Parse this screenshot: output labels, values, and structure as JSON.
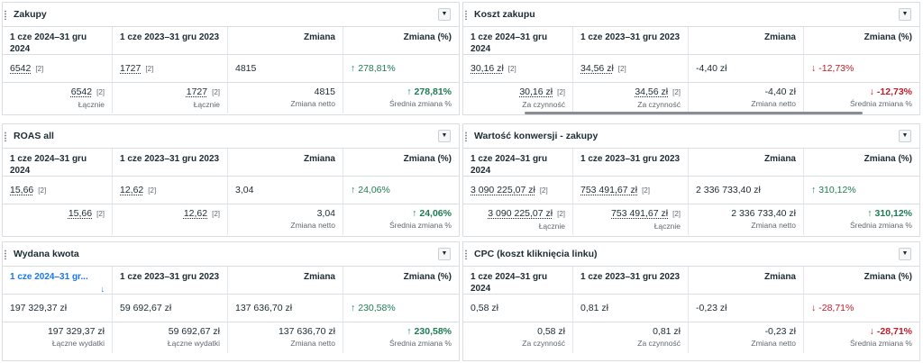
{
  "panels": [
    {
      "title": "Zakupy",
      "headers": [
        "1 cze 2024–31 gru 2024",
        "1 cze 2023–31 gru 2023",
        "Zmiana",
        "Zmiana (%)"
      ],
      "data": {
        "current": "6542",
        "current_badge": "[2]",
        "previous": "1727",
        "previous_badge": "[2]",
        "change": "4815",
        "pct": "278,81%"
      },
      "totals": {
        "current": "6542",
        "current_badge": "[2]",
        "current_sub": "Łącznie",
        "previous": "1727",
        "previous_badge": "[2]",
        "previous_sub": "Łącznie",
        "change": "4815",
        "change_sub": "Zmiana netto",
        "pct": "278,81%",
        "pct_sub": "Średnia zmiana %"
      }
    },
    {
      "title": "Koszt zakupu",
      "headers": [
        "1 cze 2024–31 gru 2024",
        "1 cze 2023–31 gru 2023",
        "Zmiana",
        "Zmiana (%)"
      ],
      "data": {
        "current": "30,16 zł",
        "current_badge": "[2]",
        "previous": "34,56 zł",
        "previous_badge": "[2]",
        "change": "-4,40 zł",
        "pct": "-12,73%"
      },
      "totals": {
        "current": "30,16 zł",
        "current_badge": "[2]",
        "current_sub": "Za czynność",
        "previous": "34,56 zł",
        "previous_badge": "[2]",
        "previous_sub": "Za czynność",
        "change": "-4,40 zł",
        "change_sub": "Zmiana netto",
        "pct": "-12,73%",
        "pct_sub": "Średnia zmiana %"
      }
    },
    {
      "title": "ROAS all",
      "headers": [
        "1 cze 2024–31 gru 2024",
        "1 cze 2023–31 gru 2023",
        "Zmiana",
        "Zmiana (%)"
      ],
      "data": {
        "current": "15,66",
        "current_badge": "[2]",
        "previous": "12,62",
        "previous_badge": "[2]",
        "change": "3,04",
        "pct": "24,06%"
      },
      "totals": {
        "current": "15,66",
        "current_badge": "[2]",
        "current_sub": "",
        "previous": "12,62",
        "previous_badge": "[2]",
        "previous_sub": "",
        "change": "3,04",
        "change_sub": "Zmiana netto",
        "pct": "24,06%",
        "pct_sub": "Średnia zmiana %"
      }
    },
    {
      "title": "Wartość konwersji - zakupy",
      "headers": [
        "1 cze 2024–31 gru 2024",
        "1 cze 2023–31 gru 2023",
        "Zmiana",
        "Zmiana (%)"
      ],
      "data": {
        "current": "3 090 225,07 zł",
        "current_badge": "[2]",
        "previous": "753 491,67 zł",
        "previous_badge": "[2]",
        "change": "2 336 733,40 zł",
        "pct": "310,12%"
      },
      "totals": {
        "current": "3 090 225,07 zł",
        "current_badge": "[2]",
        "current_sub": "Łącznie",
        "previous": "753 491,67 zł",
        "previous_badge": "[2]",
        "previous_sub": "Łącznie",
        "change": "2 336 733,40 zł",
        "change_sub": "Zmiana netto",
        "pct": "310,12%",
        "pct_sub": "Średnia zmiana %"
      }
    },
    {
      "title": "Wydana kwota",
      "headers": [
        "1 cze 2024–31 gr...",
        "1 cze 2023–31 gru 2023",
        "Zmiana",
        "Zmiana (%)"
      ],
      "sort_icon": "↓",
      "data": {
        "current": "197 329,37 zł",
        "current_badge": "",
        "previous": "59 692,67 zł",
        "previous_badge": "",
        "change": "137 636,70 zł",
        "pct": "230,58%"
      },
      "totals": {
        "current": "197 329,37 zł",
        "current_badge": "",
        "current_sub": "Łączne wydatki",
        "previous": "59 692,67 zł",
        "previous_badge": "",
        "previous_sub": "Łączne wydatki",
        "change": "137 636,70 zł",
        "change_sub": "Zmiana netto",
        "pct": "230,58%",
        "pct_sub": "Średnia zmiana %"
      }
    },
    {
      "title": "CPC (koszt kliknięcia linku)",
      "headers": [
        "1 cze 2024–31 gru 2024",
        "1 cze 2023–31 gru 2023",
        "Zmiana",
        "Zmiana (%)"
      ],
      "data": {
        "current": "0,58 zł",
        "current_badge": "",
        "previous": "0,81 zł",
        "previous_badge": "",
        "change": "-0,23 zł",
        "pct": "-28,71%"
      },
      "totals": {
        "current": "0,58 zł",
        "current_badge": "",
        "current_sub": "Za czynność",
        "previous": "0,81 zł",
        "previous_badge": "",
        "previous_sub": "Za czynność",
        "change": "-0,23 zł",
        "change_sub": "Zmiana netto",
        "pct": "-28,71%",
        "pct_sub": "Średnia zmiana %"
      }
    }
  ],
  "icons": {
    "dropdown": "▼",
    "up_arrow": "↑",
    "down_arrow": "↓"
  },
  "colors": {
    "positive": "#1c7c54",
    "negative": "#c01c28",
    "link": "#1876f2"
  }
}
